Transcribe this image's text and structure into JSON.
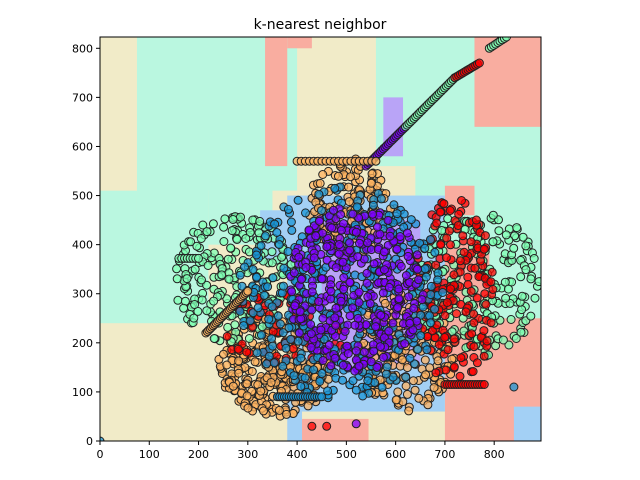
{
  "chart_data": {
    "type": "scatter",
    "title": "k-nearest neighbor",
    "xlabel": "",
    "ylabel": "",
    "xlim": [
      0,
      895
    ],
    "ylim": [
      0,
      823
    ],
    "xticks": [
      0,
      100,
      200,
      300,
      400,
      500,
      600,
      700,
      800
    ],
    "yticks": [
      0,
      100,
      200,
      300,
      400,
      500,
      600,
      700,
      800
    ],
    "grid": false,
    "legend": "none",
    "classes": [
      {
        "id": "purple",
        "point_color": "#7f00ff",
        "region_color": "#b9a4f7"
      },
      {
        "id": "blue",
        "point_color": "#1996d6",
        "region_color": "#a3d0f5"
      },
      {
        "id": "green",
        "point_color": "#80ffb4",
        "region_color": "#baf7e0"
      },
      {
        "id": "orange",
        "point_color": "#ffb360",
        "region_color": "#f1ebc8"
      },
      {
        "id": "red",
        "point_color": "#ff0000",
        "region_color": "#f9ada0"
      }
    ],
    "regions": [
      {
        "class": "orange",
        "x": [
          0,
          895
        ],
        "y": [
          0,
          823
        ]
      },
      {
        "class": "green",
        "x": [
          75,
          400
        ],
        "y": [
          510,
          823
        ]
      },
      {
        "class": "green",
        "x": [
          0,
          75
        ],
        "y": [
          240,
          510
        ]
      },
      {
        "class": "green",
        "x": [
          75,
          220
        ],
        "y": [
          240,
          520
        ]
      },
      {
        "class": "green",
        "x": [
          220,
          350
        ],
        "y": [
          400,
          540
        ]
      },
      {
        "class": "green",
        "x": [
          560,
          895
        ],
        "y": [
          560,
          823
        ]
      },
      {
        "class": "green",
        "x": [
          640,
          895
        ],
        "y": [
          400,
          560
        ]
      },
      {
        "class": "green",
        "x": [
          760,
          895
        ],
        "y": [
          230,
          430
        ]
      },
      {
        "class": "red",
        "x": [
          335,
          380
        ],
        "y": [
          560,
          823
        ]
      },
      {
        "class": "red",
        "x": [
          380,
          430
        ],
        "y": [
          800,
          823
        ]
      },
      {
        "class": "red",
        "x": [
          760,
          895
        ],
        "y": [
          640,
          823
        ]
      },
      {
        "class": "red",
        "x": [
          700,
          760
        ],
        "y": [
          460,
          520
        ]
      },
      {
        "class": "red",
        "x": [
          700,
          790
        ],
        "y": [
          270,
          400
        ]
      },
      {
        "class": "red",
        "x": [
          700,
          895
        ],
        "y": [
          0,
          250
        ]
      },
      {
        "class": "red",
        "x": [
          400,
          545
        ],
        "y": [
          0,
          45
        ]
      },
      {
        "class": "purple",
        "x": [
          575,
          615
        ],
        "y": [
          580,
          700
        ]
      },
      {
        "class": "blue",
        "x": [
          325,
          400
        ],
        "y": [
          360,
          470
        ]
      },
      {
        "class": "blue",
        "x": [
          380,
          700
        ],
        "y": [
          60,
          500
        ]
      },
      {
        "class": "blue",
        "x": [
          380,
          410
        ],
        "y": [
          0,
          70
        ]
      },
      {
        "class": "blue",
        "x": [
          840,
          895
        ],
        "y": [
          0,
          70
        ]
      },
      {
        "class": "purple",
        "x": [
          450,
          650
        ],
        "y": [
          150,
          450
        ]
      }
    ],
    "clusters": [
      {
        "class": "orange",
        "x": [
          240,
          480
        ],
        "y": [
          50,
          260
        ],
        "n": 320
      },
      {
        "class": "orange",
        "x": [
          520,
          720
        ],
        "y": [
          60,
          300
        ],
        "n": 220
      },
      {
        "class": "orange",
        "x": [
          420,
          600
        ],
        "y": [
          380,
          575
        ],
        "n": 140
      },
      {
        "class": "blue",
        "x": [
          280,
          700
        ],
        "y": [
          80,
          520
        ],
        "n": 420
      },
      {
        "class": "purple",
        "x": [
          380,
          660
        ],
        "y": [
          140,
          480
        ],
        "n": 360
      },
      {
        "class": "green",
        "x": [
          150,
          400
        ],
        "y": [
          200,
          460
        ],
        "n": 230
      },
      {
        "class": "green",
        "x": [
          630,
          895
        ],
        "y": [
          170,
          470
        ],
        "n": 230
      },
      {
        "class": "red",
        "x": [
          240,
          500
        ],
        "y": [
          150,
          300
        ],
        "n": 60
      },
      {
        "class": "red",
        "x": [
          640,
          800
        ],
        "y": [
          100,
          500
        ],
        "n": 170
      }
    ],
    "diagonals": [
      {
        "class": "purple",
        "x": [
          540,
          620
        ],
        "y": [
          560,
          640
        ],
        "n": 26
      },
      {
        "class": "green",
        "x": [
          620,
          720
        ],
        "y": [
          640,
          740
        ],
        "n": 30
      },
      {
        "class": "red",
        "x": [
          720,
          770
        ],
        "y": [
          740,
          770
        ],
        "n": 14
      },
      {
        "class": "green",
        "x": [
          790,
          825
        ],
        "y": [
          800,
          823
        ],
        "n": 9
      },
      {
        "class": "orange",
        "x": [
          215,
          300
        ],
        "y": [
          220,
          305
        ],
        "n": 30
      }
    ],
    "horizontal_bands": [
      {
        "class": "orange",
        "x": [
          400,
          560
        ],
        "y": 570,
        "n": 20
      },
      {
        "class": "blue",
        "x": [
          360,
          450
        ],
        "y": 90,
        "n": 20
      },
      {
        "class": "red",
        "x": [
          700,
          780
        ],
        "y": 115,
        "n": 18
      },
      {
        "class": "green",
        "x": [
          160,
          200
        ],
        "y": 372,
        "n": 8
      }
    ],
    "outliers": [
      {
        "class": "red",
        "x": 430,
        "y": 30
      },
      {
        "class": "red",
        "x": 460,
        "y": 30
      },
      {
        "class": "purple",
        "x": 520,
        "y": 35
      },
      {
        "class": "blue",
        "x": 840,
        "y": 110
      },
      {
        "class": "blue",
        "x": 0,
        "y": 0
      }
    ]
  }
}
